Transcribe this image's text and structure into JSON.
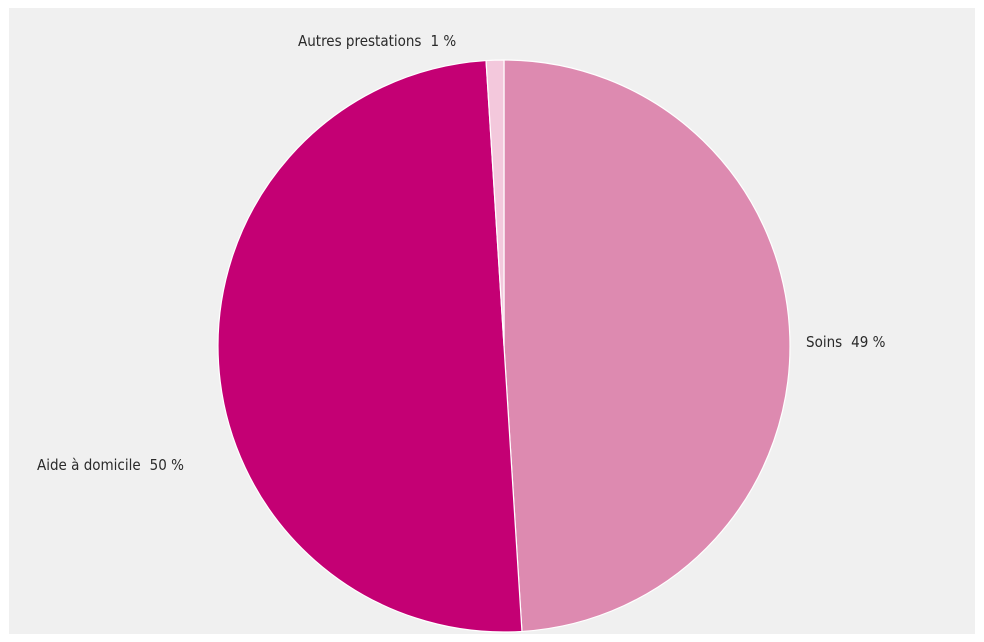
{
  "chart_data": {
    "type": "pie",
    "start_angle_deg": 0,
    "direction": "clockwise",
    "slices": [
      {
        "label": "Soins",
        "value": 49,
        "value_label": "49 %",
        "color": "#dd8ab0"
      },
      {
        "label": "Aide à domicile",
        "value": 50,
        "value_label": "50 %",
        "color": "#c40074"
      },
      {
        "label": "Autres prestations",
        "value": 1,
        "value_label": "1 %",
        "color": "#f3c8dc"
      }
    ]
  }
}
